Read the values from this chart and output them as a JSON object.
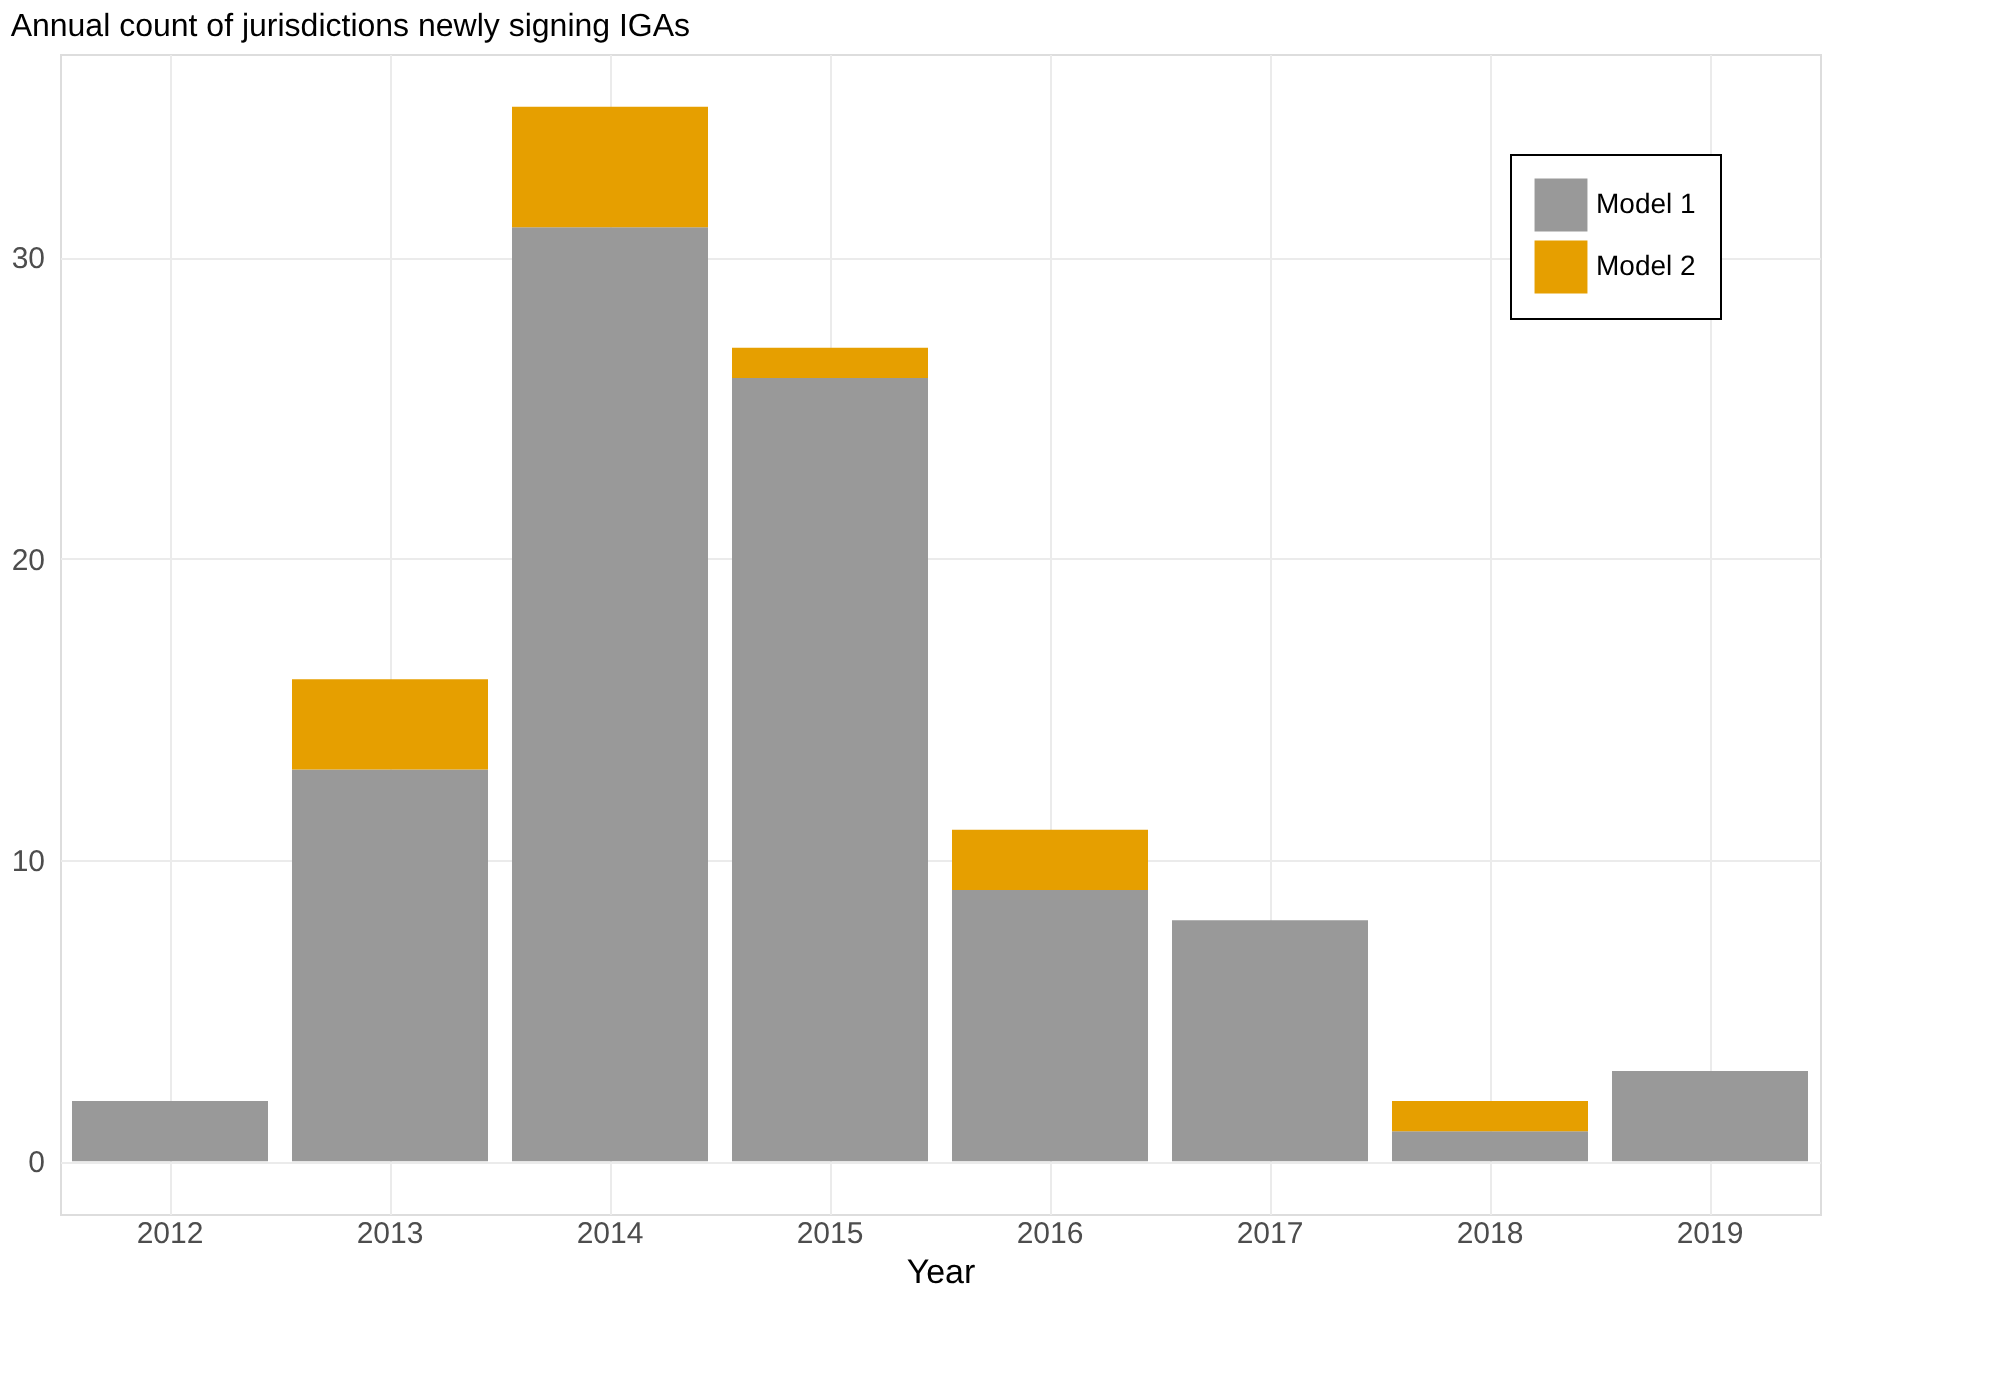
{
  "chart_data": {
    "type": "bar",
    "title": "Annual count of jurisdictions newly signing IGAs",
    "xlabel": "Year",
    "categories": [
      "2012",
      "2013",
      "2014",
      "2015",
      "2016",
      "2017",
      "2018",
      "2019"
    ],
    "series": [
      {
        "name": "Model 1",
        "color": "#999999",
        "values": [
          2,
          13,
          31,
          26,
          9,
          8,
          1,
          3
        ]
      },
      {
        "name": "Model 2",
        "color": "#e69f00",
        "values": [
          0,
          3,
          4,
          1,
          2,
          0,
          1,
          0
        ]
      }
    ],
    "stacked": true,
    "ylim": [
      -1.75,
      36.75
    ],
    "yticks": [
      0,
      10,
      20,
      30
    ],
    "grid": true,
    "legend": "top right"
  }
}
